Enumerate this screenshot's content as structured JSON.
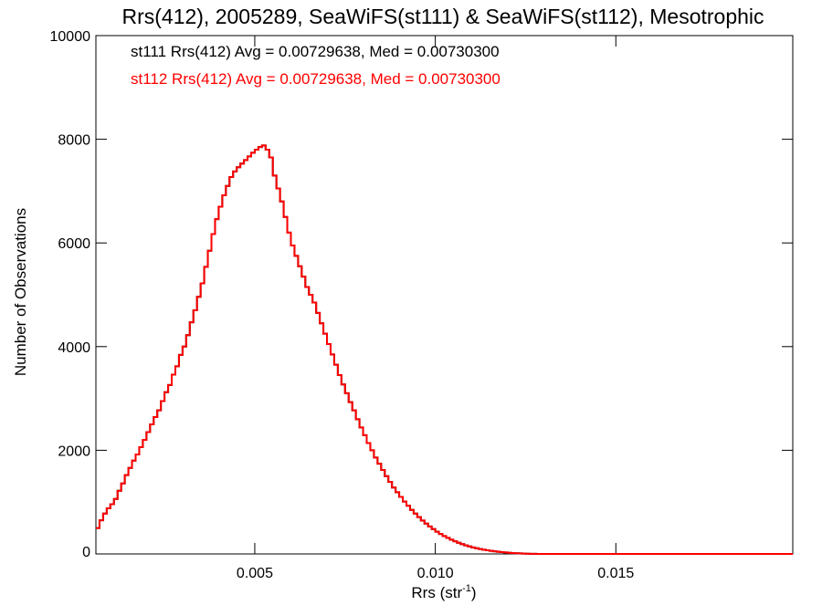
{
  "chart_data": {
    "type": "histogram",
    "title": "Rrs(412), 2005289, SeaWiFS(st111) & SeaWiFS(st112), Mesotrophic",
    "xlabel": "Rrs (str",
    "xlabel_sup": "-1",
    "xlabel_close": ")",
    "ylabel": "Number of Observations",
    "xlim": [
      0.0006,
      0.0199
    ],
    "ylim": [
      0,
      10000
    ],
    "x_ticks": [
      {
        "value": 0.005,
        "label": "0.005"
      },
      {
        "value": 0.01,
        "label": "0.010"
      },
      {
        "value": 0.015,
        "label": "0.015"
      }
    ],
    "y_ticks": [
      {
        "value": 0,
        "label": "0"
      },
      {
        "value": 2000,
        "label": "2000"
      },
      {
        "value": 4000,
        "label": "4000"
      },
      {
        "value": 6000,
        "label": "6000"
      },
      {
        "value": 8000,
        "label": "8000"
      },
      {
        "value": 10000,
        "label": "10000"
      }
    ],
    "annotations": [
      {
        "text": "st111 Rrs(412) Avg = 0.00729638, Med = 0.00730300",
        "color": "#000000"
      },
      {
        "text": "st112 Rrs(412) Avg = 0.00729638, Med = 0.00730300",
        "color": "#ff0000"
      }
    ],
    "series": [
      {
        "name": "st111",
        "color": "#000000"
      },
      {
        "name": "st112",
        "color": "#ff0000"
      }
    ],
    "bin_width": 0.0001,
    "x_start": 0.0006,
    "counts": [
      500,
      650,
      780,
      880,
      960,
      1060,
      1220,
      1360,
      1520,
      1660,
      1800,
      1920,
      2060,
      2200,
      2350,
      2500,
      2640,
      2770,
      2950,
      3120,
      3260,
      3460,
      3620,
      3840,
      4000,
      4220,
      4470,
      4700,
      4960,
      5220,
      5540,
      5850,
      6170,
      6460,
      6700,
      6920,
      7100,
      7270,
      7380,
      7460,
      7530,
      7600,
      7670,
      7740,
      7800,
      7850,
      7880,
      7800,
      7650,
      7300,
      7050,
      6800,
      6500,
      6200,
      5950,
      5750,
      5550,
      5350,
      5150,
      5000,
      4850,
      4650,
      4450,
      4250,
      4050,
      3850,
      3650,
      3450,
      3270,
      3100,
      2930,
      2770,
      2600,
      2440,
      2290,
      2140,
      2000,
      1860,
      1740,
      1620,
      1500,
      1390,
      1280,
      1190,
      1100,
      1010,
      930,
      850,
      780,
      710,
      645,
      585,
      530,
      480,
      430,
      385,
      345,
      310,
      275,
      245,
      215,
      190,
      165,
      145,
      125,
      110,
      95,
      82,
      70,
      60,
      50,
      42,
      35,
      28,
      22,
      17,
      13,
      10,
      7,
      5,
      3,
      2,
      1,
      0,
      0,
      0,
      0,
      0,
      0,
      0,
      0,
      0,
      0,
      0,
      0,
      0,
      0,
      0,
      0,
      0,
      0,
      0,
      0,
      0,
      0,
      0,
      0,
      0,
      0,
      0,
      0,
      0,
      0,
      0,
      0,
      0,
      0,
      0,
      0,
      0,
      0,
      0,
      0,
      0,
      0,
      0,
      0,
      0,
      0,
      0,
      0,
      0,
      0,
      0,
      0,
      0,
      0,
      0,
      0,
      0,
      0,
      0,
      0,
      0,
      0,
      0,
      0,
      0,
      0,
      0,
      0,
      0,
      0,
      0,
      0,
      0,
      0,
      0,
      0,
      0,
      0
    ]
  }
}
